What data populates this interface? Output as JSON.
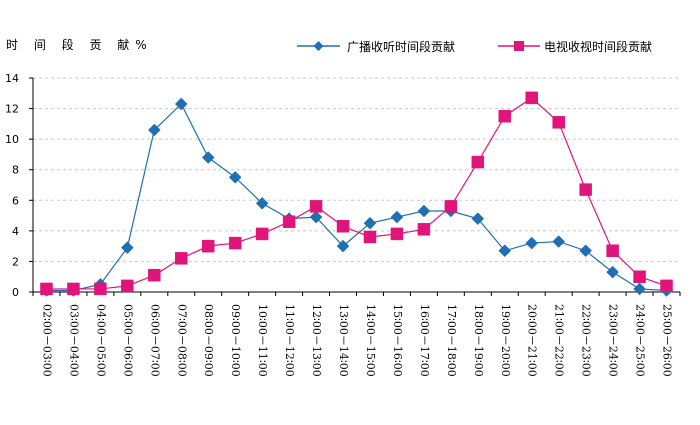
{
  "chart_data": {
    "type": "line",
    "ylabel": "时 间 段 贡 献%",
    "xlabel": "",
    "ylim": [
      0,
      14
    ],
    "yticks": [
      0,
      2,
      4,
      6,
      8,
      10,
      12,
      14
    ],
    "grid": "horizontal-dashed",
    "legend_position": "top-right",
    "categories": [
      "02∶00－03∶00",
      "03∶00－04∶00",
      "04∶00－05∶00",
      "05∶00－06∶00",
      "06∶00－07∶00",
      "07∶00－08∶00",
      "08∶00－09∶00",
      "09∶00－10∶00",
      "10∶00－11∶00",
      "11∶00－12∶00",
      "12∶00－13∶00",
      "13∶00－14∶00",
      "14∶00－15∶00",
      "15∶00－16∶00",
      "16∶00－17∶00",
      "17∶00－18∶00",
      "18∶00－19∶00",
      "19∶00－20∶00",
      "20∶00－21∶00",
      "21∶00－22∶00",
      "22∶00－23∶00",
      "23∶00－24∶00",
      "24∶00－25∶00",
      "25∶00－26∶00"
    ],
    "series": [
      {
        "name": "广播收听时间段贡献",
        "color": "#1f6fb2",
        "marker": "diamond",
        "values": [
          0.1,
          0.1,
          0.5,
          2.9,
          10.6,
          12.3,
          8.8,
          7.5,
          5.8,
          4.8,
          4.9,
          3.0,
          4.5,
          4.9,
          5.3,
          5.3,
          4.8,
          2.7,
          3.2,
          3.3,
          2.7,
          1.3,
          0.2,
          0.1
        ]
      },
      {
        "name": "电视收视时间段贡献",
        "color": "#e0157a",
        "marker": "square",
        "values": [
          0.2,
          0.2,
          0.2,
          0.4,
          1.1,
          2.2,
          3.0,
          3.2,
          3.8,
          4.6,
          5.6,
          4.3,
          3.6,
          3.8,
          4.1,
          5.6,
          8.5,
          11.5,
          12.7,
          11.1,
          6.7,
          2.7,
          1.0,
          0.4
        ]
      }
    ]
  }
}
